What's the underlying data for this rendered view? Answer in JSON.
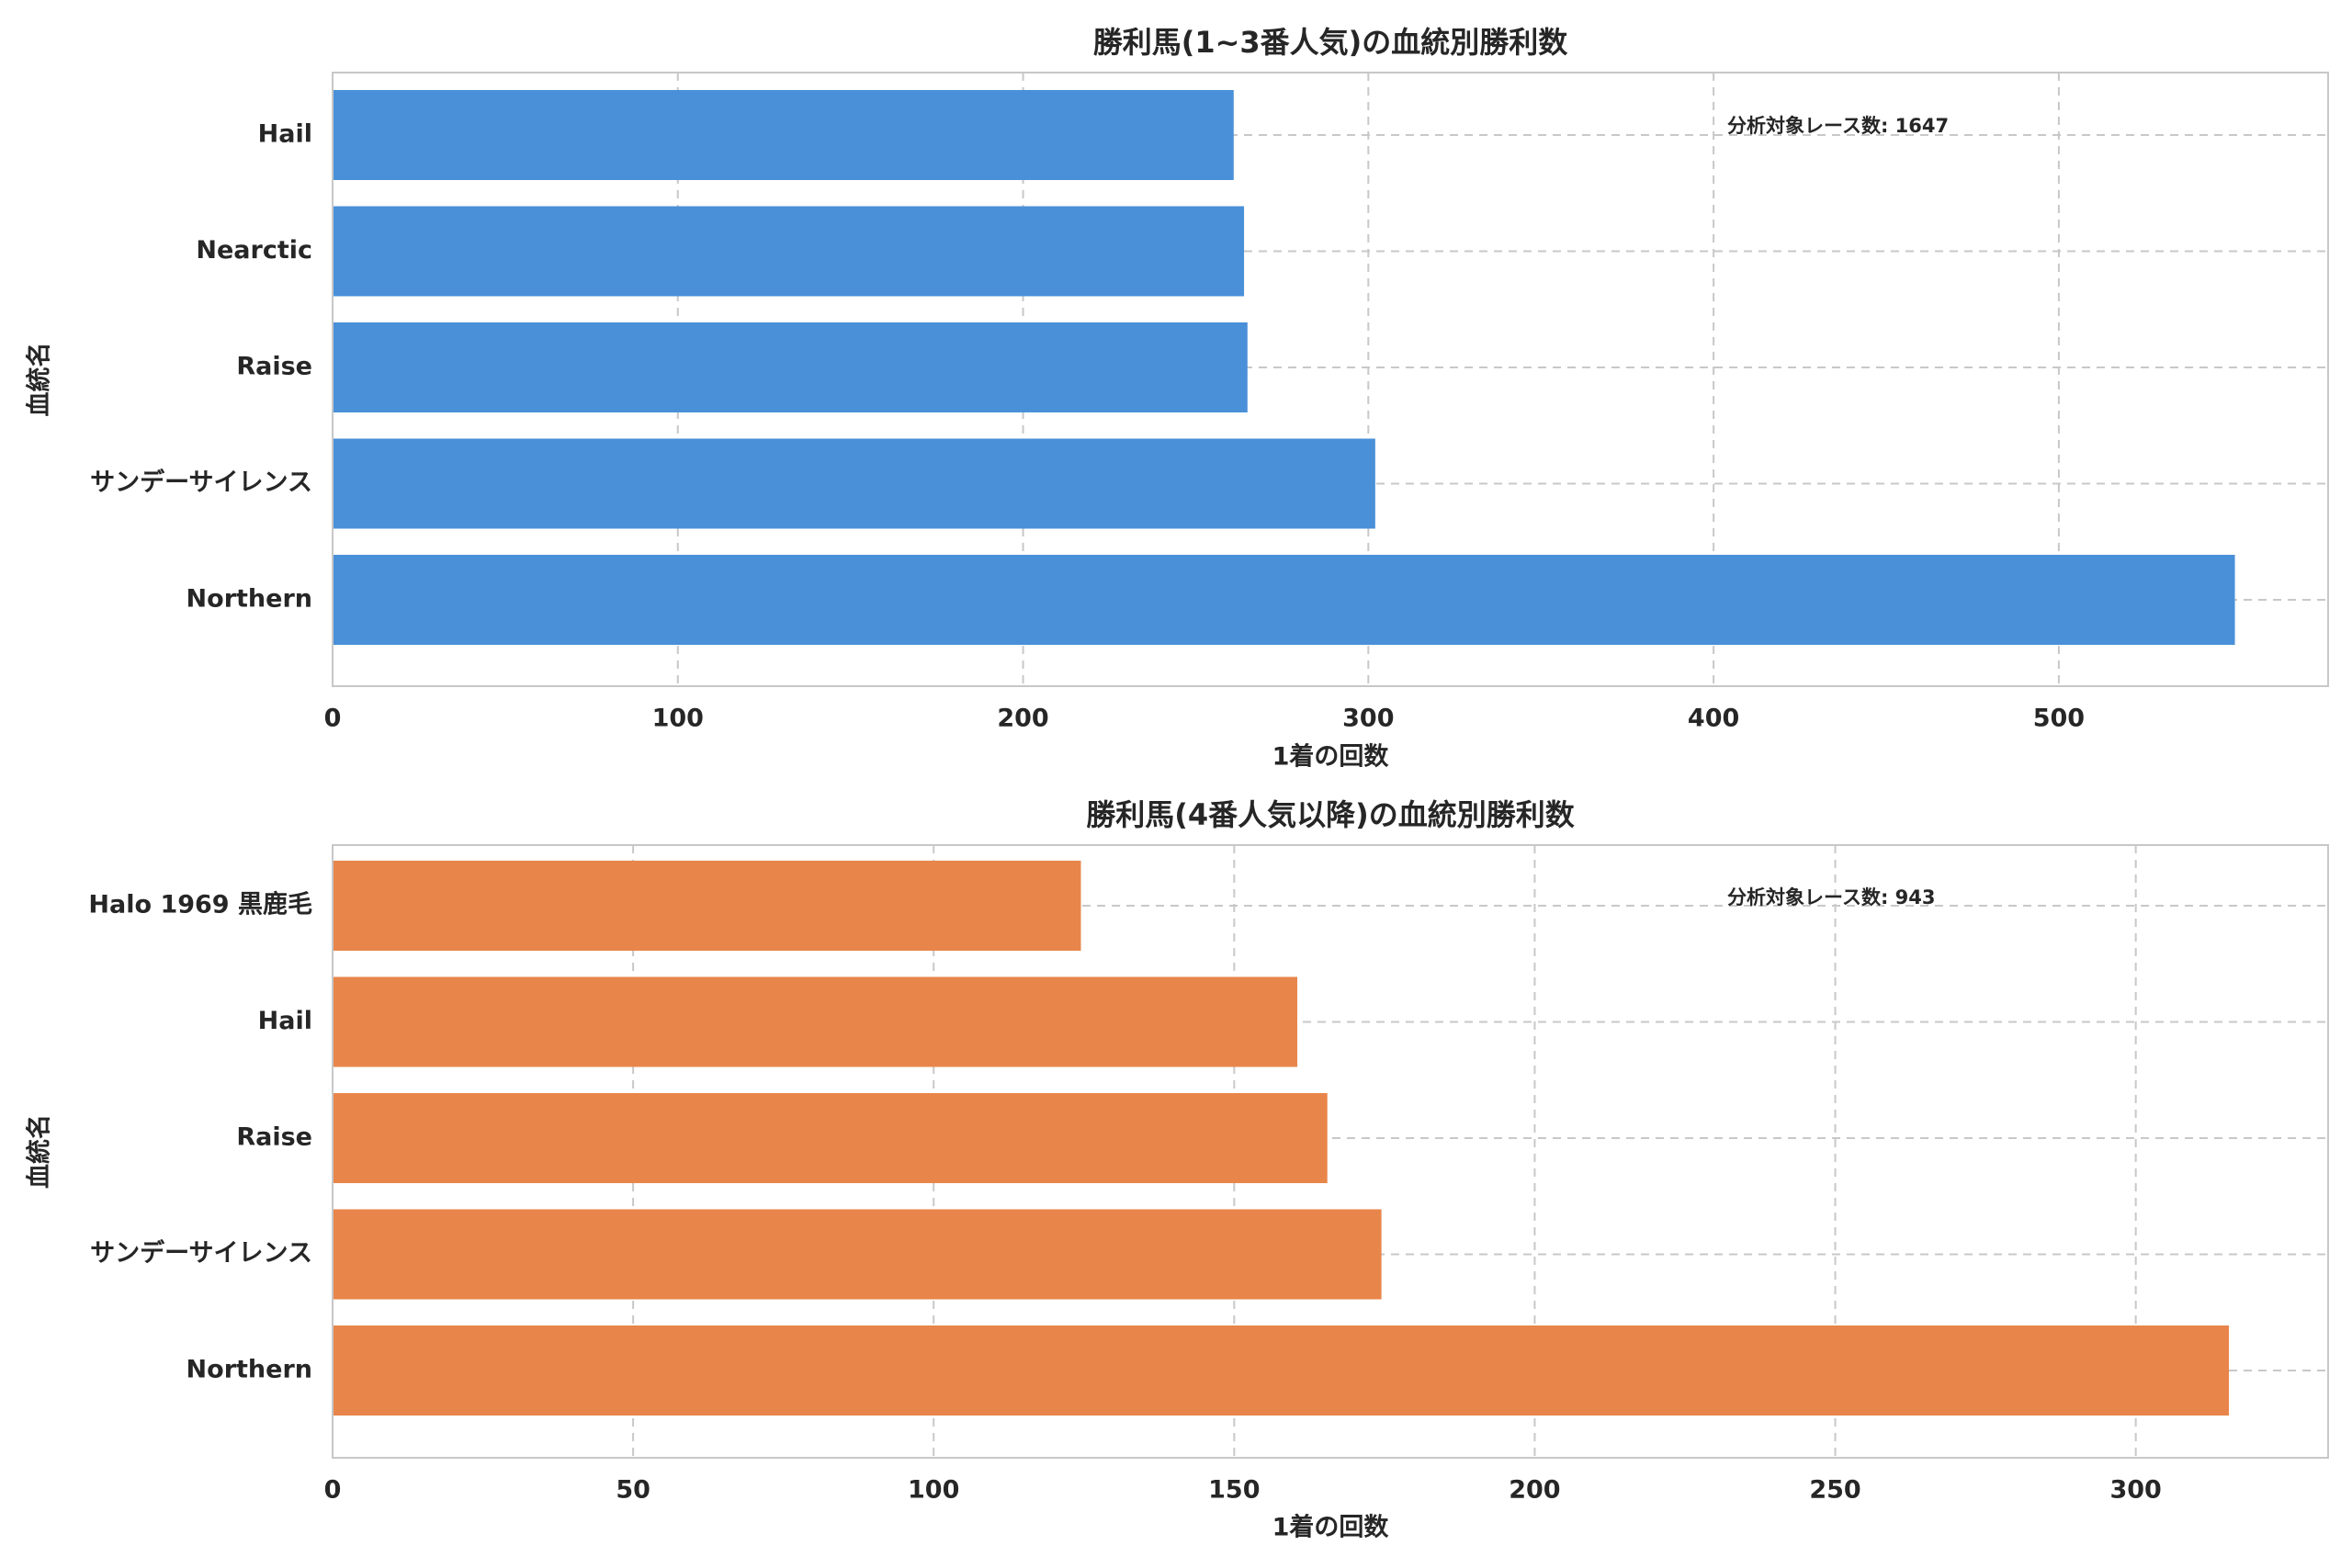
{
  "chart_data": [
    {
      "type": "bar",
      "orientation": "horizontal",
      "title": "勝利馬(1~3番人気)の血統別勝利数",
      "xlabel": "1着の回数",
      "ylabel": "血統名",
      "categories": [
        "Hail",
        "Nearctic",
        "Raise",
        "サンデーサイレンス",
        "Northern"
      ],
      "values": [
        261,
        264,
        265,
        302,
        551
      ],
      "xlim": [
        0,
        578
      ],
      "xticks": [
        0,
        100,
        200,
        300,
        400,
        500
      ],
      "grid": true,
      "color": "#4a90d9",
      "annotation": "分析対象レース数: 1647"
    },
    {
      "type": "bar",
      "orientation": "horizontal",
      "title": "勝利馬(4番人気以降)の血統別勝利数",
      "xlabel": "1着の回数",
      "ylabel": "血統名",
      "categories": [
        "Halo 1969 黒鹿毛",
        "Hail",
        "Raise",
        "サンデーサイレンス",
        "Northern"
      ],
      "values": [
        124.5,
        160.5,
        165.5,
        174.5,
        315.5
      ],
      "xlim": [
        0,
        332
      ],
      "xticks": [
        0,
        50,
        100,
        150,
        200,
        250,
        300
      ],
      "grid": true,
      "color": "#e8854a",
      "annotation": "分析対象レース数: 943"
    }
  ]
}
